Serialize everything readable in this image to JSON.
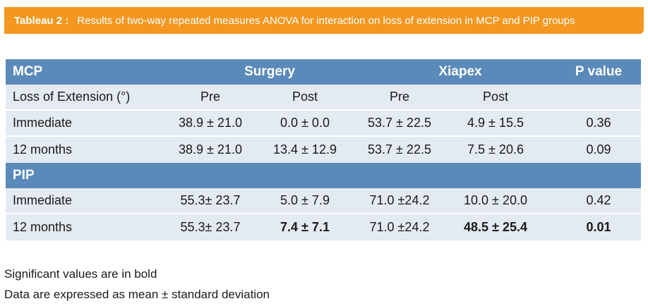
{
  "title": {
    "label": "Tableau 2 :",
    "text": "Results of two-way repeated measures ANOVA for interaction on loss of extension in MCP and PIP groups"
  },
  "mcp": {
    "header": {
      "group": "MCP",
      "surgery": "Surgery",
      "xiapex": "Xiapex",
      "pvalue": "P value"
    },
    "subheader": {
      "label": "Loss of Extension (°)",
      "pre1": "Pre",
      "post1": "Post",
      "pre2": "Pre",
      "post2": "Post"
    },
    "rows": [
      {
        "label": "Immediate",
        "s_pre": "38.9 ± 21.0",
        "s_post": "0.0 ± 0.0",
        "x_pre": "53.7 ± 22.5",
        "x_post": "4.9 ± 15.5",
        "p": "0.36"
      },
      {
        "label": "12 months",
        "s_pre": "38.9 ± 21.0",
        "s_post": "13.4 ± 12.9",
        "x_pre": "53.7 ± 22.5",
        "x_post": "7.5 ± 20.6",
        "p": "0.09"
      }
    ]
  },
  "pip": {
    "header": {
      "group": "PIP"
    },
    "rows": [
      {
        "label": "Immediate",
        "s_pre": "55.3± 23.7",
        "s_post": "5.0 ± 7.9",
        "x_pre": "71.0 ±24.2",
        "x_post": "10.0 ± 20.0",
        "p": "0.42"
      },
      {
        "label": "12 months",
        "s_pre": "55.3± 23.7",
        "s_post": "7.4 ± 7.1",
        "x_pre": "71.0 ±24.2",
        "x_post": "48.5 ± 25.4",
        "p": "0.01"
      }
    ]
  },
  "notes": [
    "Significant values are in bold",
    "Data are expressed as mean ± standard deviation"
  ],
  "colors": {
    "title_bar": "#f39720",
    "header_band": "#5a8ab9",
    "row_light": "#e4eaf2"
  }
}
